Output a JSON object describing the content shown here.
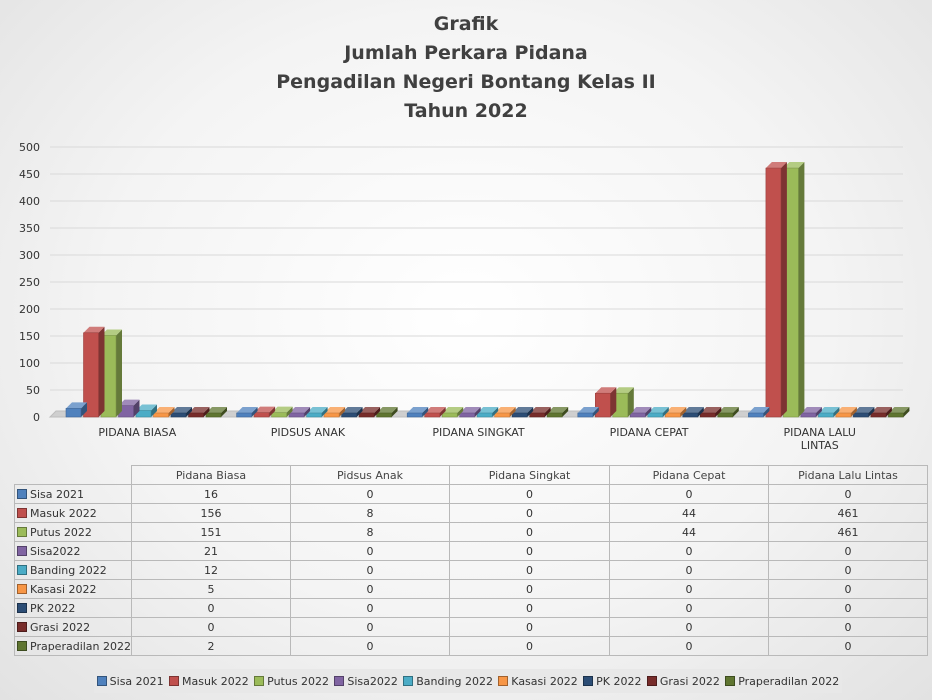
{
  "chart_data": {
    "type": "bar",
    "title_lines": [
      "Grafik",
      "Jumlah Perkara Pidana",
      "Pengadilan Negeri Bontang Kelas II",
      "Tahun 2022"
    ],
    "categories": [
      "Pidana Biasa",
      "Pidsus Anak",
      "Pidana Singkat",
      "Pidana Cepat",
      "Pidana Lalu Lintas"
    ],
    "category_axis_labels": [
      [
        "PIDANA BIASA"
      ],
      [
        "PIDSUS ANAK"
      ],
      [
        "PIDANA SINGKAT"
      ],
      [
        "PIDANA CEPAT"
      ],
      [
        "PIDANA LALU",
        "LINTAS"
      ]
    ],
    "series": [
      {
        "name": "Sisa 2021",
        "color": "#4f81bd",
        "values": [
          16,
          0,
          0,
          0,
          0
        ]
      },
      {
        "name": "Masuk 2022",
        "color": "#c0504d",
        "values": [
          156,
          8,
          0,
          44,
          461
        ]
      },
      {
        "name": "Putus 2022",
        "color": "#9bbb59",
        "values": [
          151,
          8,
          0,
          44,
          461
        ]
      },
      {
        "name": "Sisa2022",
        "color": "#8064a2",
        "values": [
          21,
          0,
          0,
          0,
          0
        ]
      },
      {
        "name": "Banding 2022",
        "color": "#4bacc6",
        "values": [
          12,
          0,
          0,
          0,
          0
        ]
      },
      {
        "name": "Kasasi 2022",
        "color": "#f79646",
        "values": [
          5,
          0,
          0,
          0,
          0
        ]
      },
      {
        "name": "PK 2022",
        "color": "#2c4d75",
        "values": [
          0,
          0,
          0,
          0,
          0
        ]
      },
      {
        "name": "Grasi 2022",
        "color": "#772c2a",
        "values": [
          0,
          0,
          0,
          0,
          0
        ]
      },
      {
        "name": "Praperadilan 2022",
        "color": "#5f7530",
        "values": [
          2,
          0,
          0,
          0,
          0
        ]
      }
    ],
    "ylim": [
      0,
      500
    ],
    "yticks": [
      0,
      50,
      100,
      150,
      200,
      250,
      300,
      350,
      400,
      450,
      500
    ],
    "grid": true,
    "legend_position": "bottom"
  }
}
